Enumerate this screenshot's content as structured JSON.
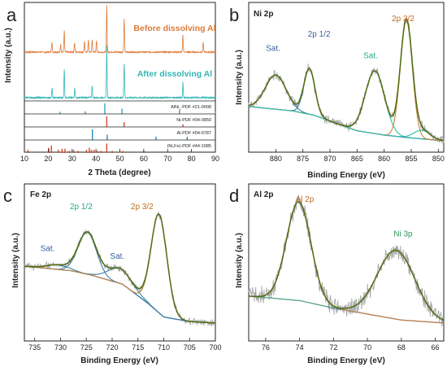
{
  "colors": {
    "xrd_before": "#e07b39",
    "xrd_after": "#35b5b5",
    "raw": "#a8a8a8",
    "fit": "#4f6d12",
    "background": "#3a4ec4",
    "peak_brown": "#c5833b",
    "peak_blue": "#3d7fa6",
    "peak_teal": "#2fbfa5",
    "peak_green": "#5cb27a",
    "ref_alni3": "#3aa0c8",
    "ref_ni": "#d84a3a",
    "ref_al": "#2a89c4",
    "ref_nife": "#d64a2b",
    "label_ni": "#3a5fa0",
    "label_teal": "#2aa58f",
    "label_brown": "#c06a1e",
    "label_green": "#2e9a5b"
  },
  "chart_data": [
    {
      "panel": "a",
      "type": "line",
      "xlabel": "2 Theta (degree)",
      "ylabel": "Intensity (a.u.)",
      "xlim": [
        10,
        90
      ],
      "xticks": [
        10,
        20,
        30,
        40,
        50,
        60,
        70,
        80,
        90
      ],
      "series": [
        {
          "name": "Before dissolving Al",
          "color_key": "xrd_before",
          "peaks": [
            [
              21.5,
              0.22
            ],
            [
              25.2,
              0.18
            ],
            [
              26.7,
              0.45
            ],
            [
              31.0,
              0.2
            ],
            [
              35.2,
              0.22
            ],
            [
              36.8,
              0.25
            ],
            [
              38.4,
              0.25
            ],
            [
              40.2,
              0.25
            ],
            [
              44.5,
              1.0
            ],
            [
              51.8,
              0.7
            ],
            [
              76.4,
              0.38
            ],
            [
              84.9,
              0.2
            ]
          ]
        },
        {
          "name": "After dissolving Al",
          "color_key": "xrd_after",
          "peaks": [
            [
              21.6,
              0.18
            ],
            [
              26.7,
              0.55
            ],
            [
              31.1,
              0.18
            ],
            [
              38.4,
              0.22
            ],
            [
              44.5,
              1.0
            ],
            [
              51.8,
              0.65
            ],
            [
              76.4,
              0.3
            ]
          ]
        }
      ],
      "references": [
        {
          "name_main": "AlNi",
          "name_sub": "3",
          "name_tail": "-PDF #21-0008",
          "color_key": "ref_alni3",
          "sticks": [
            [
              24.9,
              0.2
            ],
            [
              35.5,
              0.25
            ],
            [
              43.7,
              1.0
            ],
            [
              50.9,
              0.5
            ],
            [
              75.0,
              0.3
            ],
            [
              90.0,
              0.2
            ]
          ]
        },
        {
          "name_main": "Ni-PDF #04-0850",
          "name_sub": "",
          "name_tail": "",
          "color_key": "ref_ni",
          "sticks": [
            [
              44.5,
              1.0
            ],
            [
              51.8,
              0.45
            ],
            [
              76.4,
              0.25
            ]
          ]
        },
        {
          "name_main": "Al-PDF #04-0787",
          "name_sub": "",
          "name_tail": "",
          "color_key": "ref_al",
          "sticks": [
            [
              38.5,
              1.0
            ],
            [
              44.7,
              0.5
            ],
            [
              65.1,
              0.3
            ],
            [
              78.2,
              0.3
            ]
          ]
        },
        {
          "name_main": "(Ni,Fe)-PDF #44-1085",
          "name_sub": "",
          "name_tail": "",
          "color_key": "ref_nife",
          "sticks": [
            [
              11.5,
              0.3
            ],
            [
              20.2,
              0.5
            ],
            [
              21.3,
              0.7
            ],
            [
              24.2,
              0.3
            ],
            [
              25.8,
              0.4
            ],
            [
              27.0,
              0.4
            ],
            [
              28.8,
              0.2
            ],
            [
              30.6,
              0.3
            ],
            [
              32.5,
              0.2
            ],
            [
              36.0,
              0.3
            ],
            [
              37.2,
              0.5
            ],
            [
              38.1,
              0.3
            ],
            [
              39.2,
              0.3
            ],
            [
              40.6,
              0.2
            ],
            [
              42.0,
              0.2
            ],
            [
              44.5,
              0.9
            ],
            [
              46.8,
              0.2
            ],
            [
              51.2,
              0.2
            ],
            [
              60.0,
              0.2
            ]
          ]
        }
      ]
    },
    {
      "panel": "b",
      "type": "line",
      "title": "Ni 2p",
      "xlabel": "Binding Energy (eV)",
      "ylabel": "Intensity (a.u.)",
      "xlim": [
        885,
        849
      ],
      "xticks": [
        880,
        875,
        870,
        865,
        860,
        855,
        850
      ],
      "y_range": [
        0,
        1.05
      ],
      "background": [
        [
          885,
          0.32
        ],
        [
          877,
          0.29
        ],
        [
          873,
          0.26
        ],
        [
          865,
          0.15
        ],
        [
          860,
          0.12
        ],
        [
          855,
          0.1
        ],
        [
          849,
          0.08
        ]
      ],
      "peaks": [
        {
          "name": "Sat.",
          "center": 880.0,
          "fwhm": 4.5,
          "height": 0.24,
          "color_key": "peak_blue"
        },
        {
          "name": "2p 1/2",
          "center": 873.8,
          "fwhm": 2.4,
          "height": 0.32,
          "color_key": "peak_blue"
        },
        {
          "name": "Sat.",
          "center": 861.7,
          "fwhm": 4.2,
          "height": 0.44,
          "color_key": "peak_teal"
        },
        {
          "name": "2p 3/2",
          "center": 855.9,
          "fwhm": 2.6,
          "height": 0.82,
          "color_key": "peak_brown"
        },
        {
          "name": "",
          "center": 853.0,
          "fwhm": 3.5,
          "height": 0.06,
          "color_key": "peak_teal"
        }
      ],
      "annotations": [
        {
          "text": "Sat.",
          "x": 880.5,
          "y": 0.71,
          "color_key": "label_ni"
        },
        {
          "text": "2p 1/2",
          "x": 872.0,
          "y": 0.81,
          "color_key": "label_ni"
        },
        {
          "text": "Sat.",
          "x": 862.5,
          "y": 0.66,
          "color_key": "label_teal"
        },
        {
          "text": "2p 3/2",
          "x": 856.5,
          "y": 0.92,
          "color_key": "label_brown"
        }
      ]
    },
    {
      "panel": "c",
      "type": "line",
      "title": "Fe 2p",
      "xlabel": "Binding Energy (eV)",
      "ylabel": "Intensity (a.u.)",
      "xlim": [
        737,
        700
      ],
      "xticks": [
        735,
        730,
        725,
        720,
        715,
        710,
        705,
        700
      ],
      "y_range": [
        0,
        1.05
      ],
      "background": [
        [
          737,
          0.5
        ],
        [
          728,
          0.47
        ],
        [
          724,
          0.44
        ],
        [
          718,
          0.38
        ],
        [
          713,
          0.25
        ],
        [
          710,
          0.16
        ],
        [
          705,
          0.13
        ],
        [
          700,
          0.12
        ]
      ],
      "peaks": [
        {
          "name": "Sat.",
          "center": 730.5,
          "fwhm": 5.0,
          "height": 0.03,
          "color_key": "peak_blue"
        },
        {
          "name": "2p 1/2",
          "center": 724.8,
          "fwhm": 4.2,
          "height": 0.28,
          "color_key": "peak_blue"
        },
        {
          "name": "Sat.",
          "center": 718.5,
          "fwhm": 5.5,
          "height": 0.1,
          "color_key": "peak_blue"
        },
        {
          "name": "2p 3/2",
          "center": 710.9,
          "fwhm": 3.6,
          "height": 0.66,
          "color_key": "peak_brown"
        }
      ],
      "annotations": [
        {
          "text": "Sat.",
          "x": 732.5,
          "y": 0.6,
          "color_key": "label_ni"
        },
        {
          "text": "2p 1/2",
          "x": 726.0,
          "y": 0.88,
          "color_key": "label_teal"
        },
        {
          "text": "Sat.",
          "x": 719.0,
          "y": 0.55,
          "color_key": "label_ni"
        },
        {
          "text": "2p 3/2",
          "x": 714.2,
          "y": 0.88,
          "color_key": "label_brown"
        }
      ]
    },
    {
      "panel": "d",
      "type": "line",
      "title": "Al 2p",
      "xlabel": "Binding Energy (eV)",
      "ylabel": "Intensity (a.u.)",
      "xlim": [
        77,
        65.5
      ],
      "xticks": [
        76,
        74,
        72,
        70,
        68,
        66
      ],
      "y_range": [
        0,
        1.05
      ],
      "background": [
        [
          77,
          0.3
        ],
        [
          74,
          0.27
        ],
        [
          72,
          0.22
        ],
        [
          70,
          0.18
        ],
        [
          68,
          0.14
        ],
        [
          65.5,
          0.12
        ]
      ],
      "peaks": [
        {
          "name": "Al 2p",
          "center": 74.05,
          "fwhm": 1.7,
          "height": 0.66,
          "color_key": "peak_brown"
        },
        {
          "name": "Ni 3p",
          "center": 68.3,
          "fwhm": 2.6,
          "height": 0.46,
          "color_key": "peak_green"
        }
      ],
      "annotations": [
        {
          "text": "Al 2p",
          "x": 73.7,
          "y": 0.93,
          "color_key": "label_brown"
        },
        {
          "text": "Ni 3p",
          "x": 67.9,
          "y": 0.7,
          "color_key": "label_green"
        }
      ]
    }
  ]
}
